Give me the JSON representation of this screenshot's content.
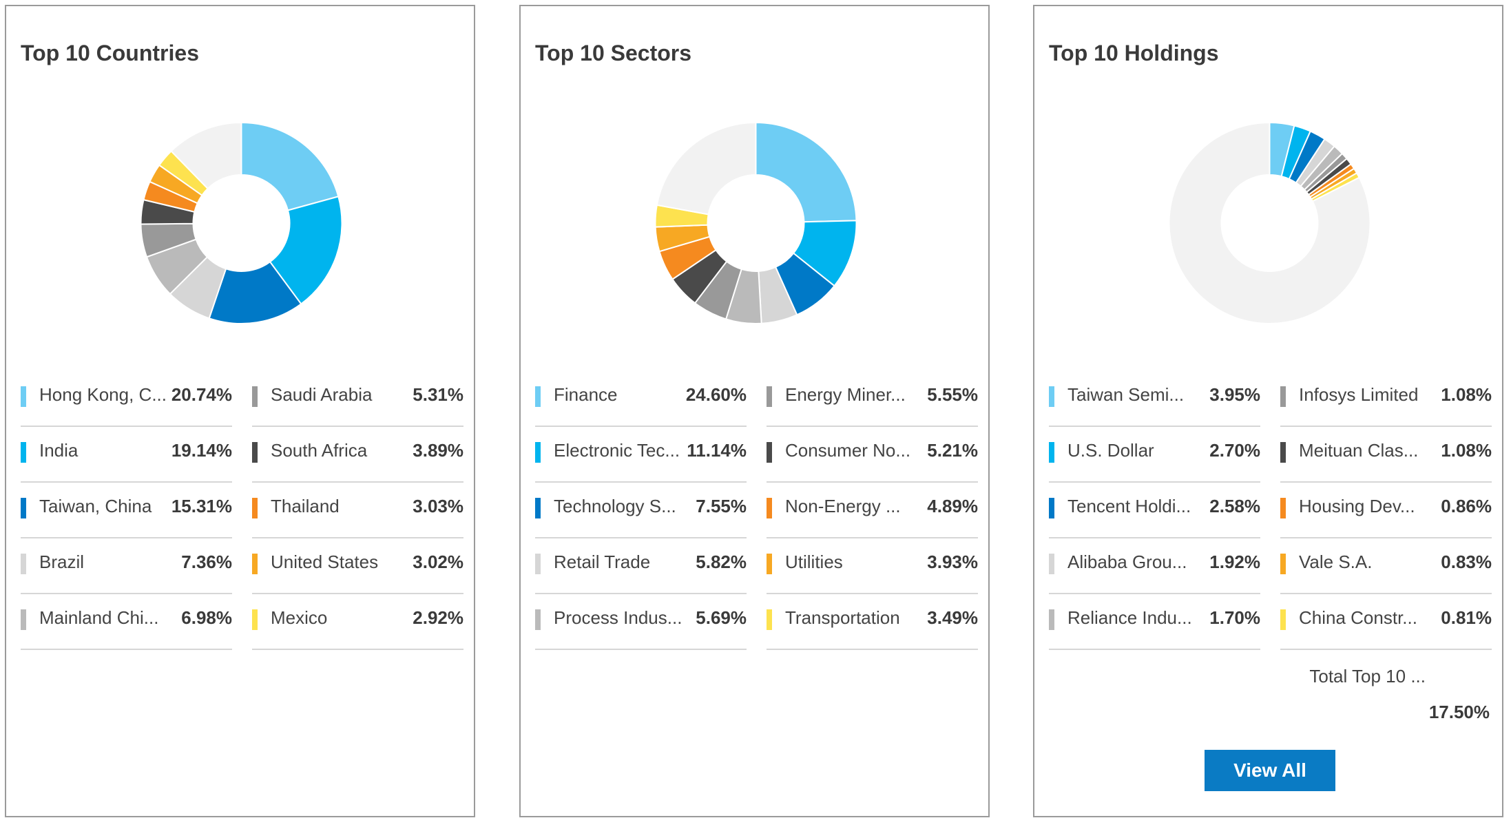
{
  "palette": [
    "#6ecdf4",
    "#00b4ee",
    "#0079c7",
    "#d6d6d6",
    "#bababa",
    "#999999",
    "#4a4a4a",
    "#f58a1f",
    "#f7a823",
    "#fde24f"
  ],
  "remainder_color": "#f2f2f2",
  "chart_data": [
    {
      "type": "pie",
      "title": "Top 10 Countries",
      "labels": [
        "Hong Kong, C...",
        "India",
        "Taiwan, China",
        "Brazil",
        "Mainland Chi...",
        "Saudi Arabia",
        "South Africa",
        "Thailand",
        "United States",
        "Mexico"
      ],
      "values": [
        20.74,
        19.14,
        15.31,
        7.36,
        6.98,
        5.31,
        3.89,
        3.03,
        3.02,
        2.92
      ],
      "display": [
        "20.74%",
        "19.14%",
        "15.31%",
        "7.36%",
        "6.98%",
        "5.31%",
        "3.89%",
        "3.03%",
        "3.02%",
        "2.92%"
      ],
      "colors": [
        "#6ecdf4",
        "#00b4ee",
        "#0079c7",
        "#d6d6d6",
        "#bababa",
        "#999999",
        "#4a4a4a",
        "#f58a1f",
        "#f7a823",
        "#fde24f"
      ],
      "donut": true
    },
    {
      "type": "pie",
      "title": "Top 10 Sectors",
      "labels": [
        "Finance",
        "Electronic Tec...",
        "Technology S...",
        "Retail Trade",
        "Process Indus...",
        "Energy Miner...",
        "Consumer No...",
        "Non-Energy ...",
        "Utilities",
        "Transportation"
      ],
      "values": [
        24.6,
        11.14,
        7.55,
        5.82,
        5.69,
        5.55,
        5.21,
        4.89,
        3.93,
        3.49
      ],
      "display": [
        "24.60%",
        "11.14%",
        "7.55%",
        "5.82%",
        "5.69%",
        "5.55%",
        "5.21%",
        "4.89%",
        "3.93%",
        "3.49%"
      ],
      "colors": [
        "#6ecdf4",
        "#00b4ee",
        "#0079c7",
        "#d6d6d6",
        "#bababa",
        "#999999",
        "#4a4a4a",
        "#f58a1f",
        "#f7a823",
        "#fde24f"
      ],
      "donut": true
    },
    {
      "type": "pie",
      "title": "Top 10 Holdings",
      "labels": [
        "Taiwan Semi...",
        "U.S. Dollar",
        "Tencent Holdi...",
        "Alibaba Grou...",
        "Reliance Indu...",
        "Infosys Limited",
        "Meituan Clas...",
        "Housing Dev...",
        "Vale S.A.",
        "China Constr..."
      ],
      "values": [
        3.95,
        2.7,
        2.58,
        1.92,
        1.7,
        1.08,
        1.08,
        0.86,
        0.83,
        0.81
      ],
      "display": [
        "3.95%",
        "2.70%",
        "2.58%",
        "1.92%",
        "1.70%",
        "1.08%",
        "1.08%",
        "0.86%",
        "0.83%",
        "0.81%"
      ],
      "colors": [
        "#6ecdf4",
        "#00b4ee",
        "#0079c7",
        "#d6d6d6",
        "#bababa",
        "#999999",
        "#4a4a4a",
        "#f58a1f",
        "#f7a823",
        "#fde24f"
      ],
      "donut": true,
      "total_label": "Total Top 10 ...",
      "total_value": "17.50%"
    }
  ],
  "holdings": {
    "view_all_label": "View All"
  }
}
